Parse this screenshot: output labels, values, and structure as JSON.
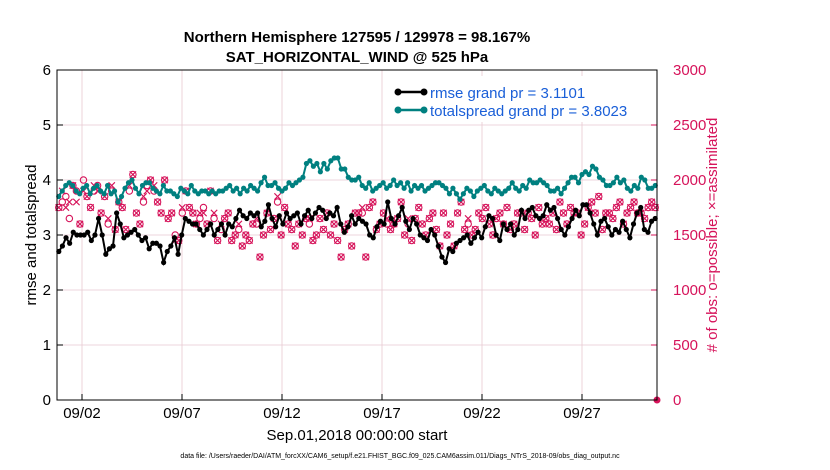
{
  "chart_data": {
    "type": "line",
    "title_line1": "Northern Hemisphere 127595 / 129978 = 98.167%",
    "title_line2": "SAT_HORIZONTAL_WIND @ 525 hPa",
    "xlabel": "Sep.01,2018 00:00:00 start",
    "ylabel_left": "rmse and totalspread",
    "ylabel_right": "# of obs: o=possible; ×=assimilated",
    "footnote": "data file: /Users/raeder/DAI/ATM_forcXX/CAM6_setup/f.e21.FHIST_BGC.f09_025.CAM6assim.011/Diags_NTrS_2018-09/obs_diag_output.nc",
    "xlim": [
      0.5,
      30.5
    ],
    "ylim_left": [
      0,
      6
    ],
    "ylim_right": [
      0,
      3000
    ],
    "x_ticks": [
      1.75,
      6.75,
      11.75,
      16.75,
      21.75,
      26.75
    ],
    "x_tick_labels": [
      "09/02",
      "09/07",
      "09/12",
      "09/17",
      "09/22",
      "09/27"
    ],
    "y_left_ticks": [
      "0",
      "1",
      "2",
      "3",
      "4",
      "5",
      "6"
    ],
    "y_right_ticks": [
      "0",
      "500",
      "1000",
      "1500",
      "2000",
      "2500",
      "3000"
    ],
    "colors": {
      "rmse": "#000000",
      "spread": "#008080",
      "obs": "#d6135a",
      "legend_text": "#1a5fd8",
      "grid": "#e8c8d0"
    },
    "series": [
      {
        "name": "rmse grand pr = 3.1101",
        "values": [
          2.7,
          2.8,
          2.95,
          2.85,
          3.05,
          3.0,
          3.0,
          3.0,
          3.05,
          2.9,
          3.0,
          3.3,
          3.0,
          2.65,
          2.75,
          2.8,
          3.4,
          3.2,
          2.95,
          3.0,
          3.05,
          3.1,
          3.0,
          2.9,
          2.95,
          2.75,
          2.85,
          2.85,
          2.8,
          2.5,
          2.7,
          2.8,
          2.95,
          2.65,
          3.0,
          3.3,
          3.25,
          3.2,
          3.2,
          3.1,
          3.0,
          3.1,
          3.2,
          3.0,
          3.1,
          3.2,
          3.0,
          3.2,
          3.15,
          3.3,
          3.45,
          3.35,
          3.3,
          3.4,
          3.35,
          3.4,
          3.15,
          3.25,
          3.55,
          3.3,
          3.15,
          3.35,
          3.2,
          3.4,
          3.3,
          3.35,
          3.4,
          3.2,
          3.35,
          3.45,
          3.3,
          3.4,
          3.5,
          3.45,
          3.3,
          3.4,
          3.35,
          3.5,
          3.2,
          3.05,
          3.15,
          3.35,
          3.2,
          3.3,
          3.25,
          3.2,
          3.0,
          2.95,
          3.15,
          3.25,
          3.2,
          3.6,
          3.3,
          3.2,
          3.35,
          3.5,
          3.25,
          3.1,
          3.3,
          3.2,
          3.0,
          2.95,
          2.9,
          3.1,
          3.0,
          2.8,
          2.6,
          2.5,
          2.75,
          2.7,
          2.85,
          2.9,
          2.95,
          3.0,
          2.85,
          2.95,
          3.05,
          2.95,
          3.15,
          3.35,
          3.3,
          3.0,
          2.9,
          3.2,
          3.1,
          3.2,
          3.0,
          3.1,
          3.45,
          3.3,
          3.45,
          3.5,
          3.35,
          3.3,
          3.35,
          3.55,
          3.45,
          3.5,
          3.3,
          3.1,
          3.0,
          3.15,
          3.3,
          3.45,
          3.35,
          3.55,
          3.55,
          3.4,
          3.2,
          3.0,
          3.25,
          3.3,
          3.15,
          3.0,
          3.1,
          3.05,
          3.25,
          3.1,
          2.95,
          3.2,
          3.4,
          3.5,
          3.1,
          3.05,
          3.25,
          3.3
        ]
      },
      {
        "name": "totalspread grand pr = 3.8023",
        "values": [
          3.7,
          3.8,
          3.9,
          3.95,
          3.9,
          3.8,
          3.75,
          3.85,
          3.9,
          3.75,
          3.85,
          3.9,
          3.8,
          3.75,
          3.9,
          3.75,
          3.8,
          3.6,
          3.7,
          3.85,
          3.95,
          4.0,
          3.85,
          3.75,
          3.9,
          3.95,
          3.95,
          3.85,
          3.8,
          3.75,
          3.9,
          3.8,
          3.8,
          3.75,
          3.7,
          3.85,
          3.8,
          3.75,
          3.9,
          3.8,
          3.75,
          3.8,
          3.8,
          3.75,
          3.8,
          3.75,
          3.8,
          3.8,
          3.85,
          3.9,
          3.8,
          3.85,
          3.75,
          3.85,
          3.8,
          3.9,
          3.85,
          3.8,
          3.95,
          4.05,
          3.9,
          3.9,
          3.95,
          3.85,
          3.8,
          3.85,
          3.95,
          3.9,
          3.95,
          4.0,
          4.05,
          4.3,
          4.35,
          4.25,
          4.3,
          4.15,
          4.3,
          4.2,
          4.35,
          4.4,
          4.4,
          4.2,
          4.2,
          4.05,
          4.0,
          4.0,
          4.05,
          3.9,
          3.85,
          3.95,
          3.8,
          3.85,
          3.9,
          3.95,
          3.85,
          3.9,
          4.0,
          3.9,
          3.95,
          3.85,
          3.95,
          3.8,
          3.9,
          3.85,
          3.9,
          3.8,
          3.85,
          3.9,
          3.95,
          3.95,
          3.9,
          3.85,
          3.75,
          3.85,
          3.75,
          3.65,
          3.75,
          3.85,
          3.8,
          3.7,
          3.8,
          3.85,
          3.9,
          3.8,
          3.75,
          3.85,
          3.8,
          3.75,
          3.8,
          3.85,
          3.95,
          3.85,
          3.8,
          3.9,
          3.85,
          4.0,
          3.95,
          3.95,
          4.0,
          3.95,
          3.9,
          3.8,
          3.8,
          3.85,
          3.75,
          3.85,
          3.95,
          4.05,
          4.05,
          3.95,
          4.1,
          4.15,
          4.1,
          4.25,
          4.2,
          4.05,
          4.0,
          3.9,
          3.9,
          3.95,
          4.05,
          3.95,
          4.0,
          3.85,
          3.8,
          3.9,
          3.85,
          4.05,
          4.0,
          3.85,
          3.85,
          3.9
        ]
      }
    ],
    "obs_possible": [
      1750,
      1800,
      1850,
      1650,
      1950,
      1900,
      1600,
      2000,
      1850,
      1750,
      1900,
      1950,
      1700,
      1850,
      1600,
      1900,
      1550,
      1800,
      1750,
      1550,
      1900,
      2050,
      1700,
      1600,
      1800,
      1950,
      2000,
      1900,
      1800,
      1700,
      2000,
      1650,
      1700,
      1500,
      1450,
      1700,
      1900,
      1750,
      1700,
      1600,
      1650,
      1750,
      1600,
      1900,
      1650,
      1450,
      1550,
      1650,
      1700,
      1450,
      1500,
      1550,
      1400,
      1500,
      1450,
      1600,
      1600,
      1300,
      1500,
      1700,
      1550,
      1650,
      1800,
      1500,
      1750,
      1600,
      1550,
      1400,
      1600,
      1500,
      1650,
      1600,
      1450,
      1500,
      1650,
      1550,
      1700,
      1500,
      1600,
      1450,
      1300,
      1550,
      1600,
      1400,
      1700,
      1700,
      1700,
      1300,
      1750,
      1800,
      1550,
      1600,
      1700,
      1600,
      1550,
      1600,
      1650,
      1800,
      1500,
      1600,
      1450,
      1650,
      1750,
      1600,
      1500,
      1650,
      1700,
      1550,
      1400,
      1700,
      1500,
      1600,
      1400,
      1700,
      1800,
      1550,
      1600,
      1500,
      1550,
      1700,
      1650,
      1750,
      1600,
      1500,
      1650,
      1700,
      1600,
      1750,
      1550,
      1600,
      1700,
      1700,
      1550,
      1700,
      1650,
      1500,
      1750,
      1600,
      1650,
      1600,
      1700,
      1550,
      1800,
      1700,
      1600,
      1750,
      1700,
      1700,
      1500,
      1600,
      1750,
      1800,
      1700,
      1850,
      1550,
      1700,
      1700,
      1650,
      1750,
      1800,
      1600,
      1700,
      1750,
      1800,
      1700,
      1700,
      1650,
      1750,
      1800,
      1750
    ],
    "obs_assimilated": [
      1750,
      1900,
      1750,
      1800,
      1950,
      1800,
      1600,
      1900,
      1850,
      1750,
      1950,
      1900,
      1700,
      1850,
      1650,
      1950,
      1550,
      1800,
      1750,
      1550,
      1950,
      2050,
      1700,
      1600,
      1850,
      1900,
      2000,
      1950,
      1800,
      1700,
      2000,
      1650,
      1700,
      1450,
      1450,
      1750,
      1900,
      1750,
      1700,
      1600,
      1700,
      1700,
      1600,
      1900,
      1700,
      1450,
      1600,
      1650,
      1700,
      1450,
      1500,
      1600,
      1400,
      1500,
      1450,
      1600,
      1650,
      1300,
      1500,
      1700,
      1550,
      1650,
      1850,
      1500,
      1750,
      1600,
      1550,
      1400,
      1600,
      1500,
      1650,
      1650,
      1450,
      1500,
      1650,
      1550,
      1700,
      1500,
      1600,
      1450,
      1300,
      1550,
      1600,
      1400,
      1700,
      1700,
      1750,
      1300,
      1750,
      1800,
      1550,
      1600,
      1700,
      1650,
      1550,
      1600,
      1650,
      1800,
      1500,
      1650,
      1450,
      1650,
      1750,
      1600,
      1500,
      1650,
      1700,
      1550,
      1400,
      1700,
      1500,
      1600,
      1400,
      1700,
      1800,
      1550,
      1650,
      1500,
      1550,
      1700,
      1650,
      1750,
      1600,
      1500,
      1650,
      1700,
      1600,
      1750,
      1550,
      1600,
      1700,
      1700,
      1550,
      1700,
      1650,
      1500,
      1750,
      1600,
      1650,
      1600,
      1700,
      1550,
      1800,
      1700,
      1600,
      1750,
      1700,
      1700,
      1500,
      1600,
      1750,
      1800,
      1700,
      1850,
      1550,
      1700,
      1700,
      1650,
      1750,
      1800,
      1600,
      1700,
      1750,
      1800,
      1700,
      1700,
      1650,
      1750,
      1800,
      1750
    ]
  }
}
